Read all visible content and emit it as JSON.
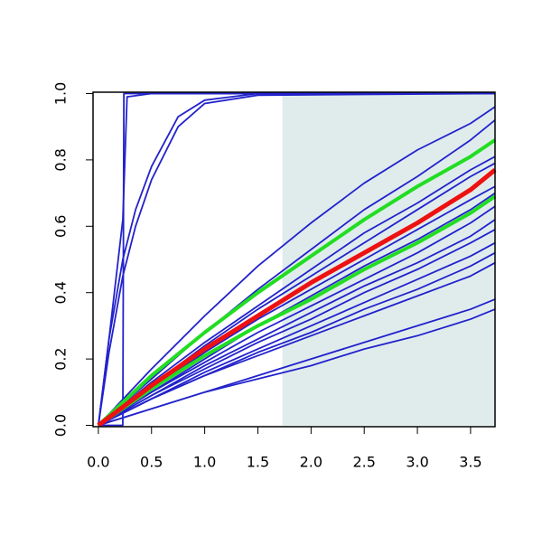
{
  "chart_data": {
    "type": "line",
    "xlim": [
      -0.05,
      3.73
    ],
    "ylim": [
      -0.004,
      1.004
    ],
    "xticks": [
      {
        "value": 0,
        "label": "0.0"
      },
      0.5,
      {
        "value": 1,
        "label": "1.0"
      },
      1.5,
      {
        "value": 2,
        "label": "2.0"
      },
      2.5,
      {
        "value": 3,
        "label": "3.0"
      },
      3.5
    ],
    "yticks": [
      {
        "value": 0,
        "label": "0.0"
      },
      {
        "value": 0.2,
        "label": "0.2"
      },
      {
        "value": 0.4,
        "label": "0.4"
      },
      {
        "value": 0.6,
        "label": "0.6"
      },
      {
        "value": 0.8,
        "label": "0.8"
      },
      {
        "value": 1,
        "label": "1.0"
      }
    ],
    "shade_xlim": [
      1.73,
      3.73
    ],
    "shade_color": "#e0ecec",
    "x": [
      0,
      0.5,
      1,
      1.5,
      2,
      2.5,
      3,
      3.5,
      3.73
    ],
    "series": [
      {
        "color": "#2222cc",
        "x": [
          0,
          0.23,
          0.24,
          1.73,
          3.73
        ],
        "values": [
          0,
          0,
          1,
          1,
          1
        ]
      },
      {
        "color": "#2222cc",
        "x": [
          0,
          0.1,
          0.23,
          0.27,
          0.5,
          1,
          3.73
        ],
        "values": [
          0,
          0.26,
          0.62,
          0.99,
          1,
          1,
          1
        ]
      },
      {
        "color": "#2222cc",
        "x": [
          0,
          0.1,
          0.23,
          0.35,
          0.5,
          0.75,
          1,
          1.5,
          3.73
        ],
        "values": [
          0,
          0.26,
          0.5,
          0.65,
          0.78,
          0.93,
          0.98,
          1,
          1
        ]
      },
      {
        "color": "#2222cc",
        "x": [
          0,
          0.1,
          0.23,
          0.35,
          0.5,
          0.75,
          1,
          1.5,
          3.73
        ],
        "values": [
          0,
          0.22,
          0.45,
          0.6,
          0.74,
          0.9,
          0.97,
          0.995,
          1
        ]
      },
      {
        "color": "#2222cc",
        "values": [
          0,
          0.17,
          0.33,
          0.48,
          0.61,
          0.73,
          0.83,
          0.91,
          0.96
        ]
      },
      {
        "color": "#2222cc",
        "values": [
          0,
          0.14,
          0.28,
          0.41,
          0.53,
          0.65,
          0.75,
          0.86,
          0.92
        ]
      },
      {
        "color": "#2222cc",
        "values": [
          0,
          0.13,
          0.25,
          0.36,
          0.47,
          0.58,
          0.67,
          0.77,
          0.81
        ]
      },
      {
        "color": "#2222cc",
        "values": [
          0,
          0.12,
          0.24,
          0.35,
          0.45,
          0.55,
          0.65,
          0.75,
          0.79
        ]
      },
      {
        "color": "#2222cc",
        "values": [
          0,
          0.11,
          0.22,
          0.32,
          0.41,
          0.5,
          0.59,
          0.68,
          0.72
        ]
      },
      {
        "color": "#2222cc",
        "values": [
          0,
          0.1,
          0.2,
          0.3,
          0.39,
          0.48,
          0.56,
          0.65,
          0.7
        ]
      },
      {
        "color": "#2222cc",
        "values": [
          0,
          0.1,
          0.19,
          0.28,
          0.36,
          0.44,
          0.52,
          0.61,
          0.66
        ]
      },
      {
        "color": "#2222cc",
        "values": [
          0,
          0.09,
          0.18,
          0.26,
          0.34,
          0.42,
          0.49,
          0.57,
          0.62
        ]
      },
      {
        "color": "#2222cc",
        "values": [
          0,
          0.09,
          0.17,
          0.25,
          0.32,
          0.4,
          0.47,
          0.55,
          0.59
        ]
      },
      {
        "color": "#2222cc",
        "values": [
          0,
          0.08,
          0.16,
          0.23,
          0.3,
          0.37,
          0.44,
          0.51,
          0.55
        ]
      },
      {
        "color": "#2222cc",
        "values": [
          0,
          0.08,
          0.15,
          0.22,
          0.28,
          0.35,
          0.41,
          0.48,
          0.52
        ]
      },
      {
        "color": "#2222cc",
        "values": [
          0,
          0.08,
          0.15,
          0.21,
          0.27,
          0.33,
          0.39,
          0.45,
          0.49
        ]
      },
      {
        "color": "#2222cc",
        "values": [
          0,
          0.05,
          0.1,
          0.15,
          0.2,
          0.25,
          0.3,
          0.35,
          0.38
        ]
      },
      {
        "color": "#2222cc",
        "values": [
          0,
          0.05,
          0.1,
          0.14,
          0.18,
          0.23,
          0.27,
          0.32,
          0.35
        ]
      },
      {
        "color": "#22dd22",
        "width": 4,
        "values": [
          0,
          0.15,
          0.28,
          0.4,
          0.51,
          0.62,
          0.72,
          0.81,
          0.86
        ]
      },
      {
        "color": "#22dd22",
        "width": 4,
        "values": [
          0,
          0.11,
          0.21,
          0.3,
          0.38,
          0.47,
          0.55,
          0.64,
          0.69
        ]
      },
      {
        "color": "#ee1111",
        "width": 5,
        "values": [
          0,
          0.12,
          0.23,
          0.33,
          0.43,
          0.52,
          0.61,
          0.71,
          0.77
        ]
      }
    ]
  }
}
